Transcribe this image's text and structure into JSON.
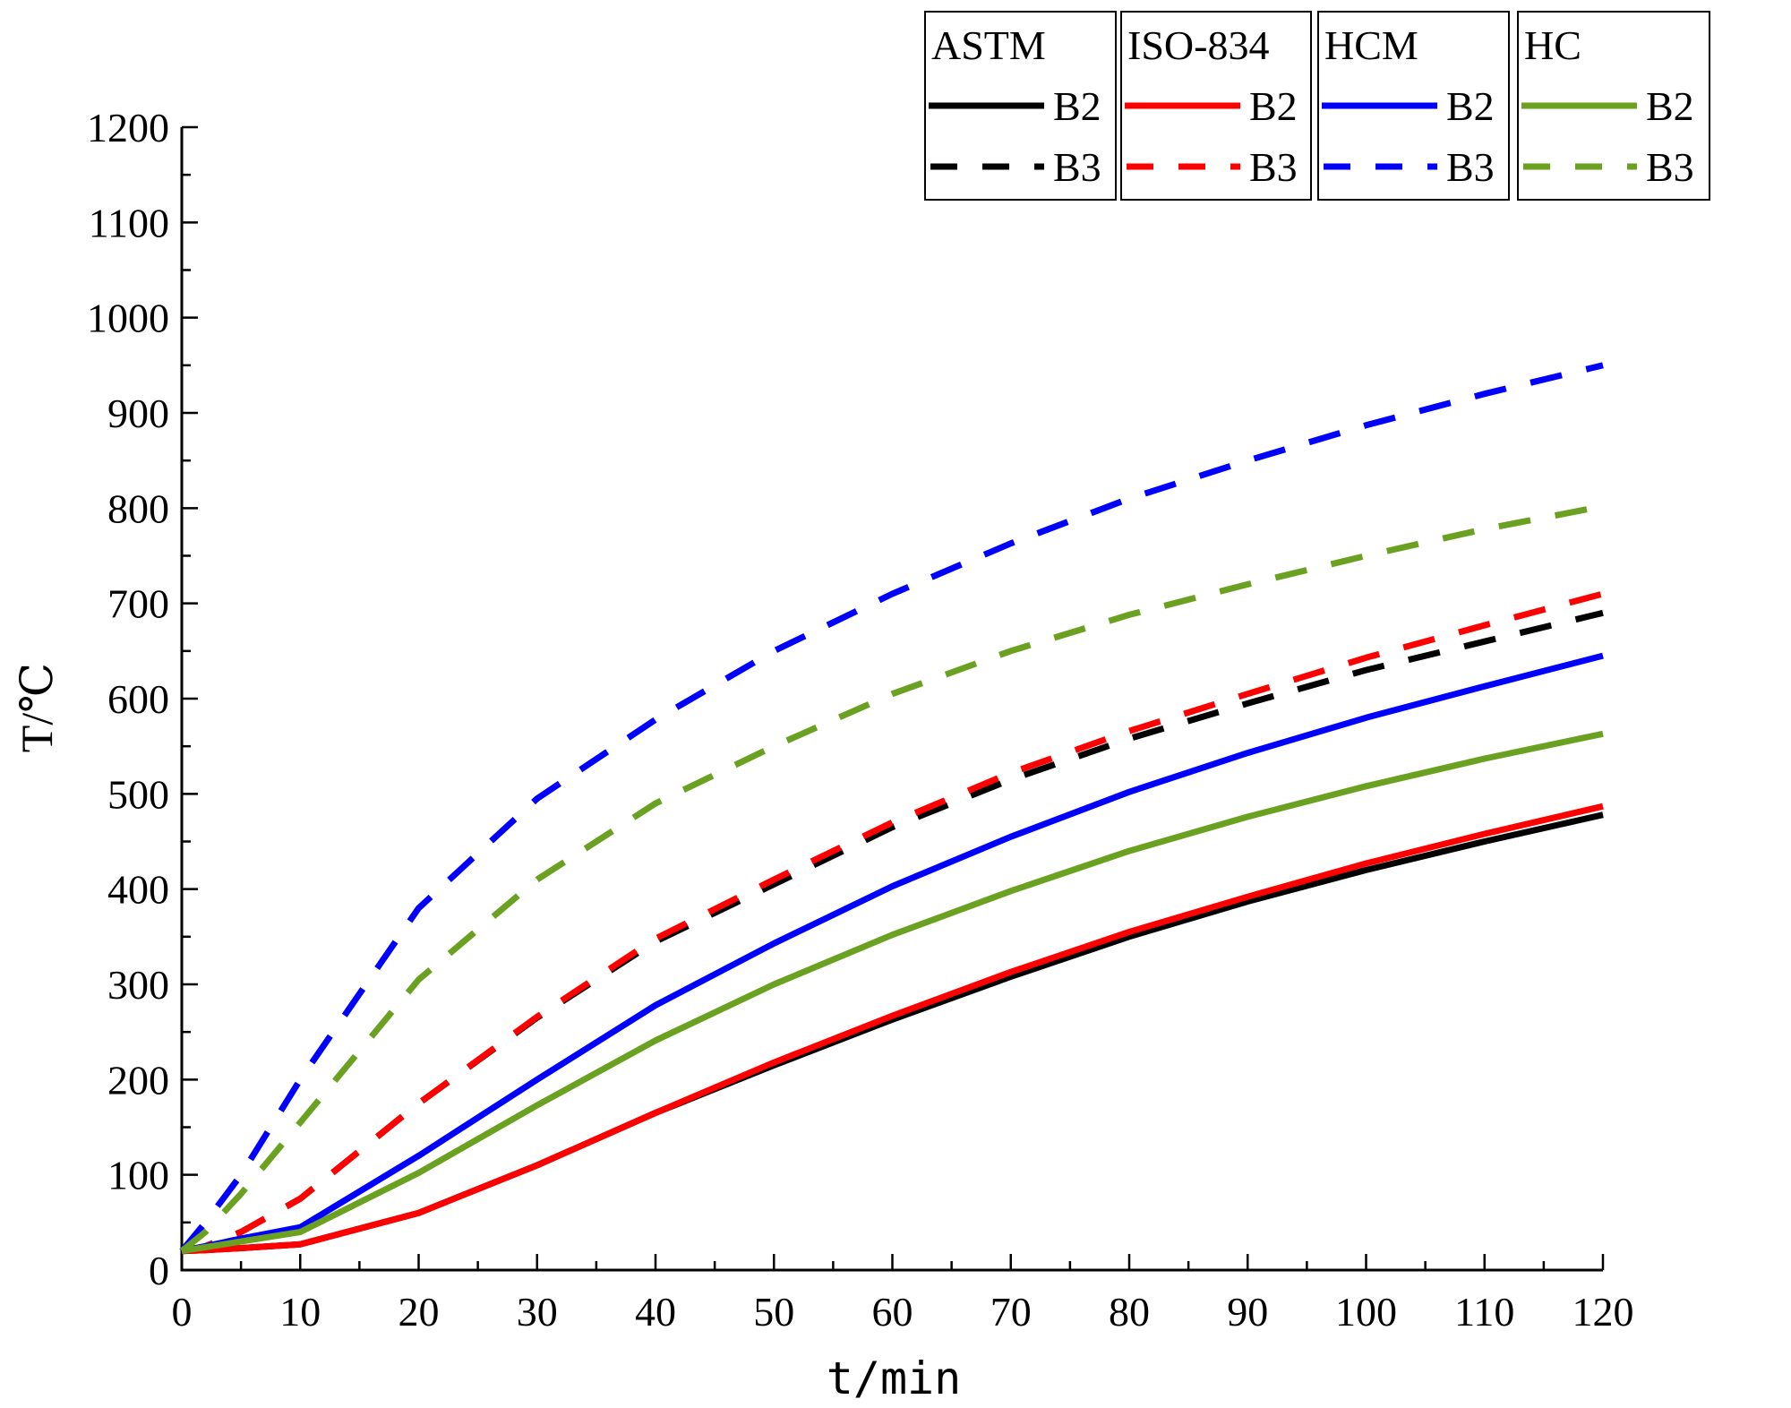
{
  "chart_data": {
    "type": "line",
    "title": "",
    "xlabel": "t/min",
    "ylabel": "T/℃",
    "xlim": [
      0,
      120
    ],
    "ylim": [
      0,
      1200
    ],
    "x_ticks": [
      0,
      10,
      20,
      30,
      40,
      50,
      60,
      70,
      80,
      90,
      100,
      110,
      120
    ],
    "y_ticks": [
      0,
      100,
      200,
      300,
      400,
      500,
      600,
      700,
      800,
      900,
      1000,
      1100,
      1200
    ],
    "x_tick_labels": [
      "0",
      "10",
      "20",
      "30",
      "40",
      "50",
      "60",
      "70",
      "80",
      "90",
      "100",
      "110",
      "120"
    ],
    "y_tick_labels": [
      "0",
      "100",
      "200",
      "300",
      "400",
      "500",
      "600",
      "700",
      "800",
      "900",
      "1000",
      "1100",
      "1200"
    ],
    "grid": false,
    "legend_position": "top-right",
    "x": [
      0,
      2,
      5,
      10,
      20,
      30,
      40,
      50,
      60,
      70,
      80,
      90,
      100,
      110,
      120
    ],
    "legend_groups": [
      {
        "name": "ASTM",
        "color": "#000000",
        "entries": [
          "B2",
          "B3"
        ]
      },
      {
        "name": "ISO-834",
        "color": "#ff0000",
        "entries": [
          "B2",
          "B3"
        ]
      },
      {
        "name": "HCM",
        "color": "#0000ff",
        "entries": [
          "B2",
          "B3"
        ]
      },
      {
        "name": "HC",
        "color": "#6aa121",
        "entries": [
          "B2",
          "B3"
        ]
      }
    ],
    "series": [
      {
        "name": "B2",
        "group": "ASTM",
        "color": "#000000",
        "dash": false,
        "values": [
          20,
          21,
          23,
          27,
          60,
          110,
          165,
          215,
          263,
          308,
          350,
          387,
          420,
          450,
          478
        ]
      },
      {
        "name": "B3",
        "group": "ASTM",
        "color": "#000000",
        "dash": true,
        "values": [
          20,
          25,
          40,
          75,
          175,
          265,
          345,
          405,
          465,
          515,
          558,
          595,
          630,
          660,
          690
        ]
      },
      {
        "name": "B2",
        "group": "ISO-834",
        "color": "#ff0000",
        "dash": false,
        "values": [
          20,
          21,
          23,
          27,
          60,
          110,
          165,
          218,
          267,
          313,
          355,
          392,
          427,
          458,
          487
        ]
      },
      {
        "name": "B3",
        "group": "ISO-834",
        "color": "#ff0000",
        "dash": true,
        "values": [
          20,
          25,
          40,
          75,
          175,
          266,
          348,
          410,
          470,
          522,
          566,
          605,
          643,
          677,
          710
        ]
      },
      {
        "name": "B2",
        "group": "HCM",
        "color": "#0000ff",
        "dash": false,
        "values": [
          20,
          25,
          33,
          45,
          120,
          200,
          278,
          343,
          403,
          455,
          502,
          543,
          580,
          613,
          645
        ]
      },
      {
        "name": "B3",
        "group": "HCM",
        "color": "#0000ff",
        "dash": true,
        "values": [
          20,
          50,
          100,
          200,
          380,
          495,
          578,
          650,
          710,
          763,
          810,
          850,
          887,
          920,
          950
        ]
      },
      {
        "name": "B2",
        "group": "HC",
        "color": "#6aa121",
        "dash": false,
        "values": [
          20,
          24,
          30,
          40,
          102,
          173,
          241,
          300,
          352,
          398,
          440,
          476,
          508,
          537,
          563
        ]
      },
      {
        "name": "B3",
        "group": "HC",
        "color": "#6aa121",
        "dash": true,
        "values": [
          20,
          40,
          80,
          155,
          305,
          410,
          490,
          550,
          605,
          650,
          688,
          720,
          750,
          778,
          802
        ]
      }
    ]
  }
}
